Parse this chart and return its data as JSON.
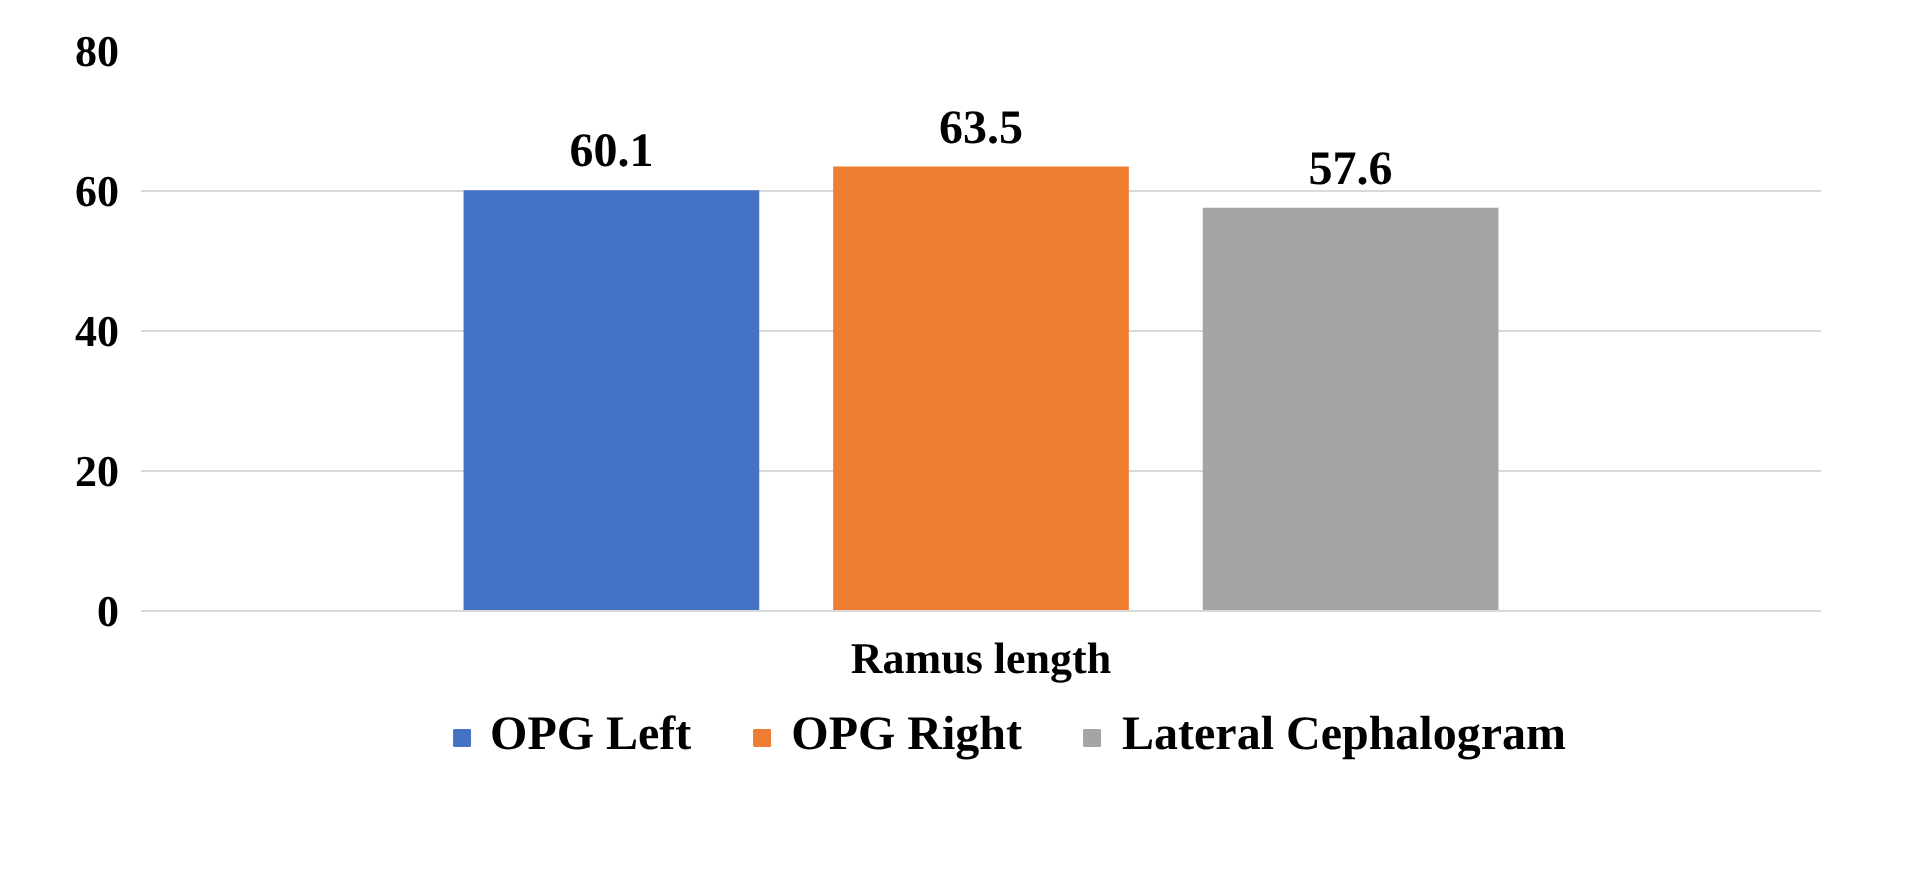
{
  "chart_data": {
    "type": "bar",
    "categories": [
      "Ramus length"
    ],
    "series": [
      {
        "name": "OPG Left",
        "color": "#4472c4",
        "values": [
          60.1
        ]
      },
      {
        "name": "OPG Right",
        "color": "#ed7d31",
        "values": [
          63.5
        ]
      },
      {
        "name": "Lateral Cephalogram",
        "color": "#a5a5a5",
        "values": [
          57.6
        ]
      }
    ],
    "ylim": [
      0,
      80
    ],
    "yticks": [
      0,
      20,
      40,
      60,
      80
    ],
    "grid": "y",
    "legend": "bottom",
    "data_labels": true
  }
}
